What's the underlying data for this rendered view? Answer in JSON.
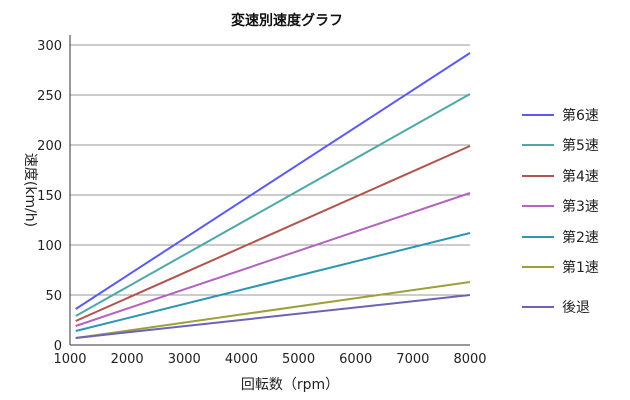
{
  "chart_data": {
    "type": "line",
    "title": "変速別速度グラフ",
    "xlabel": "回転数（rpm）",
    "ylabel": "速度(km/h)",
    "xlim": [
      1000,
      8000
    ],
    "ylim": [
      0,
      300
    ],
    "x_ticks": [
      "1000",
      "2000",
      "3000",
      "4000",
      "5000",
      "6000",
      "7000",
      "8000"
    ],
    "y_ticks": [
      "0",
      "50",
      "100",
      "150",
      "200",
      "250",
      "300"
    ],
    "y_tick_values": [
      0,
      50,
      100,
      150,
      200,
      250,
      300
    ],
    "x_tick_values": [
      1000,
      2000,
      3000,
      4000,
      5000,
      6000,
      7000,
      8000
    ],
    "grid": "horizontal",
    "legend_position": "right",
    "series": [
      {
        "name": "第6速",
        "color": "#5b5bef",
        "x": [
          1100,
          8000
        ],
        "y": [
          36,
          292
        ]
      },
      {
        "name": "第5速",
        "color": "#4fa8a8",
        "x": [
          1100,
          8000
        ],
        "y": [
          29,
          251
        ]
      },
      {
        "name": "第4速",
        "color": "#b0544e",
        "x": [
          1100,
          8000
        ],
        "y": [
          24,
          199
        ]
      },
      {
        "name": "第3速",
        "color": "#b363c0",
        "x": [
          1100,
          8000
        ],
        "y": [
          19,
          152
        ]
      },
      {
        "name": "第2速",
        "color": "#2e95b3",
        "x": [
          1100,
          8000
        ],
        "y": [
          14,
          112
        ]
      },
      {
        "name": "第1速",
        "color": "#9da03a",
        "x": [
          1100,
          8000
        ],
        "y": [
          7,
          63
        ]
      },
      {
        "name": "後退",
        "color": "#6b63b5",
        "x": [
          1100,
          8000
        ],
        "y": [
          7,
          50
        ]
      }
    ]
  }
}
